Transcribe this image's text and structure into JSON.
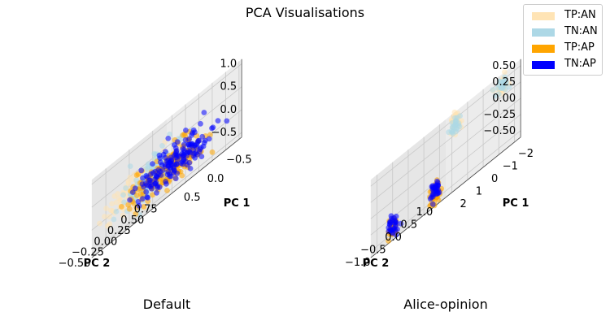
{
  "figure": {
    "title": "PCA Visualisations"
  },
  "legend": {
    "items": [
      {
        "label": "TP:AN",
        "color": "#ffe4b5"
      },
      {
        "label": "TN:AN",
        "color": "#add8e6"
      },
      {
        "label": "TP:AP",
        "color": "#ffa500"
      },
      {
        "label": "TN:AP",
        "color": "#0000ff"
      }
    ]
  },
  "chart_data": [
    {
      "type": "scatter",
      "subtitle": "Default",
      "projection": "3d",
      "axis_labels": {
        "x": "PC 1",
        "y": "PC 2",
        "z": ""
      },
      "xlim": [
        -0.8,
        0.8
      ],
      "ylim": [
        -0.6,
        0.8
      ],
      "zlim": [
        -0.6,
        1.1
      ],
      "x_ticks": [
        "−0.5",
        "0.0",
        "0.5"
      ],
      "y_ticks": [
        "−0.50",
        "−0.25",
        "0.00",
        "0.25",
        "0.50",
        "0.75"
      ],
      "z_ticks": [
        "−0.5",
        "0.0",
        "0.5",
        "1.0"
      ],
      "series": [
        {
          "name": "TP:AN",
          "cluster": {
            "center": [
              0.2,
              -0.15,
              0.1
            ],
            "spread": [
              0.3,
              0.3,
              0.2
            ]
          },
          "count": 140
        },
        {
          "name": "TN:AN",
          "cluster": {
            "center": [
              -0.1,
              -0.3,
              0.1
            ],
            "spread": [
              0.25,
              0.25,
              0.2
            ]
          },
          "count": 140
        },
        {
          "name": "TP:AP",
          "cluster": {
            "center": [
              0.1,
              0.2,
              0.0
            ],
            "spread": [
              0.3,
              0.25,
              0.2
            ]
          },
          "count": 160
        },
        {
          "name": "TN:AP",
          "cluster": {
            "center": [
              -0.3,
              0.0,
              0.05
            ],
            "spread": [
              0.3,
              0.3,
              0.2
            ]
          },
          "count": 160
        }
      ]
    },
    {
      "type": "scatter",
      "subtitle": "Alice-opinion",
      "projection": "3d",
      "axis_labels": {
        "x": "PC 1",
        "y": "PC 2",
        "z": ""
      },
      "xlim": [
        -2.4,
        2.4
      ],
      "ylim": [
        -1.2,
        1.2
      ],
      "zlim": [
        -0.6,
        0.6
      ],
      "x_ticks": [
        "−2",
        "−1",
        "0",
        "1",
        "2"
      ],
      "y_ticks": [
        "−1.0",
        "−0.5",
        "0.0",
        "0.5",
        "1.0"
      ],
      "z_ticks": [
        "−0.50",
        "−0.25",
        "0.00",
        "0.25",
        "0.50"
      ],
      "series": [
        {
          "name": "TP:AN",
          "clusters": [
            {
              "center": [
                -1.6,
                -0.5,
                0.45
              ],
              "spread": [
                0.1,
                0.08,
                0.08
              ]
            },
            {
              "center": [
                -1.7,
                0.95,
                0.45
              ],
              "spread": [
                0.1,
                0.08,
                0.08
              ]
            }
          ],
          "count": 60
        },
        {
          "name": "TN:AN",
          "clusters": [
            {
              "center": [
                -1.6,
                -0.5,
                0.4
              ],
              "spread": [
                0.1,
                0.08,
                0.08
              ]
            },
            {
              "center": [
                -1.7,
                0.95,
                0.4
              ],
              "spread": [
                0.1,
                0.08,
                0.08
              ]
            }
          ],
          "count": 50
        },
        {
          "name": "TP:AP",
          "clusters": [
            {
              "center": [
                1.6,
                -0.9,
                -0.4
              ],
              "spread": [
                0.1,
                0.06,
                0.08
              ]
            },
            {
              "center": [
                1.7,
                0.5,
                -0.4
              ],
              "spread": [
                0.1,
                0.06,
                0.08
              ]
            }
          ],
          "count": 80
        },
        {
          "name": "TN:AP",
          "clusters": [
            {
              "center": [
                1.6,
                -0.9,
                -0.38
              ],
              "spread": [
                0.1,
                0.06,
                0.08
              ]
            },
            {
              "center": [
                1.7,
                0.5,
                -0.38
              ],
              "spread": [
                0.1,
                0.06,
                0.08
              ]
            }
          ],
          "count": 60
        }
      ]
    }
  ]
}
